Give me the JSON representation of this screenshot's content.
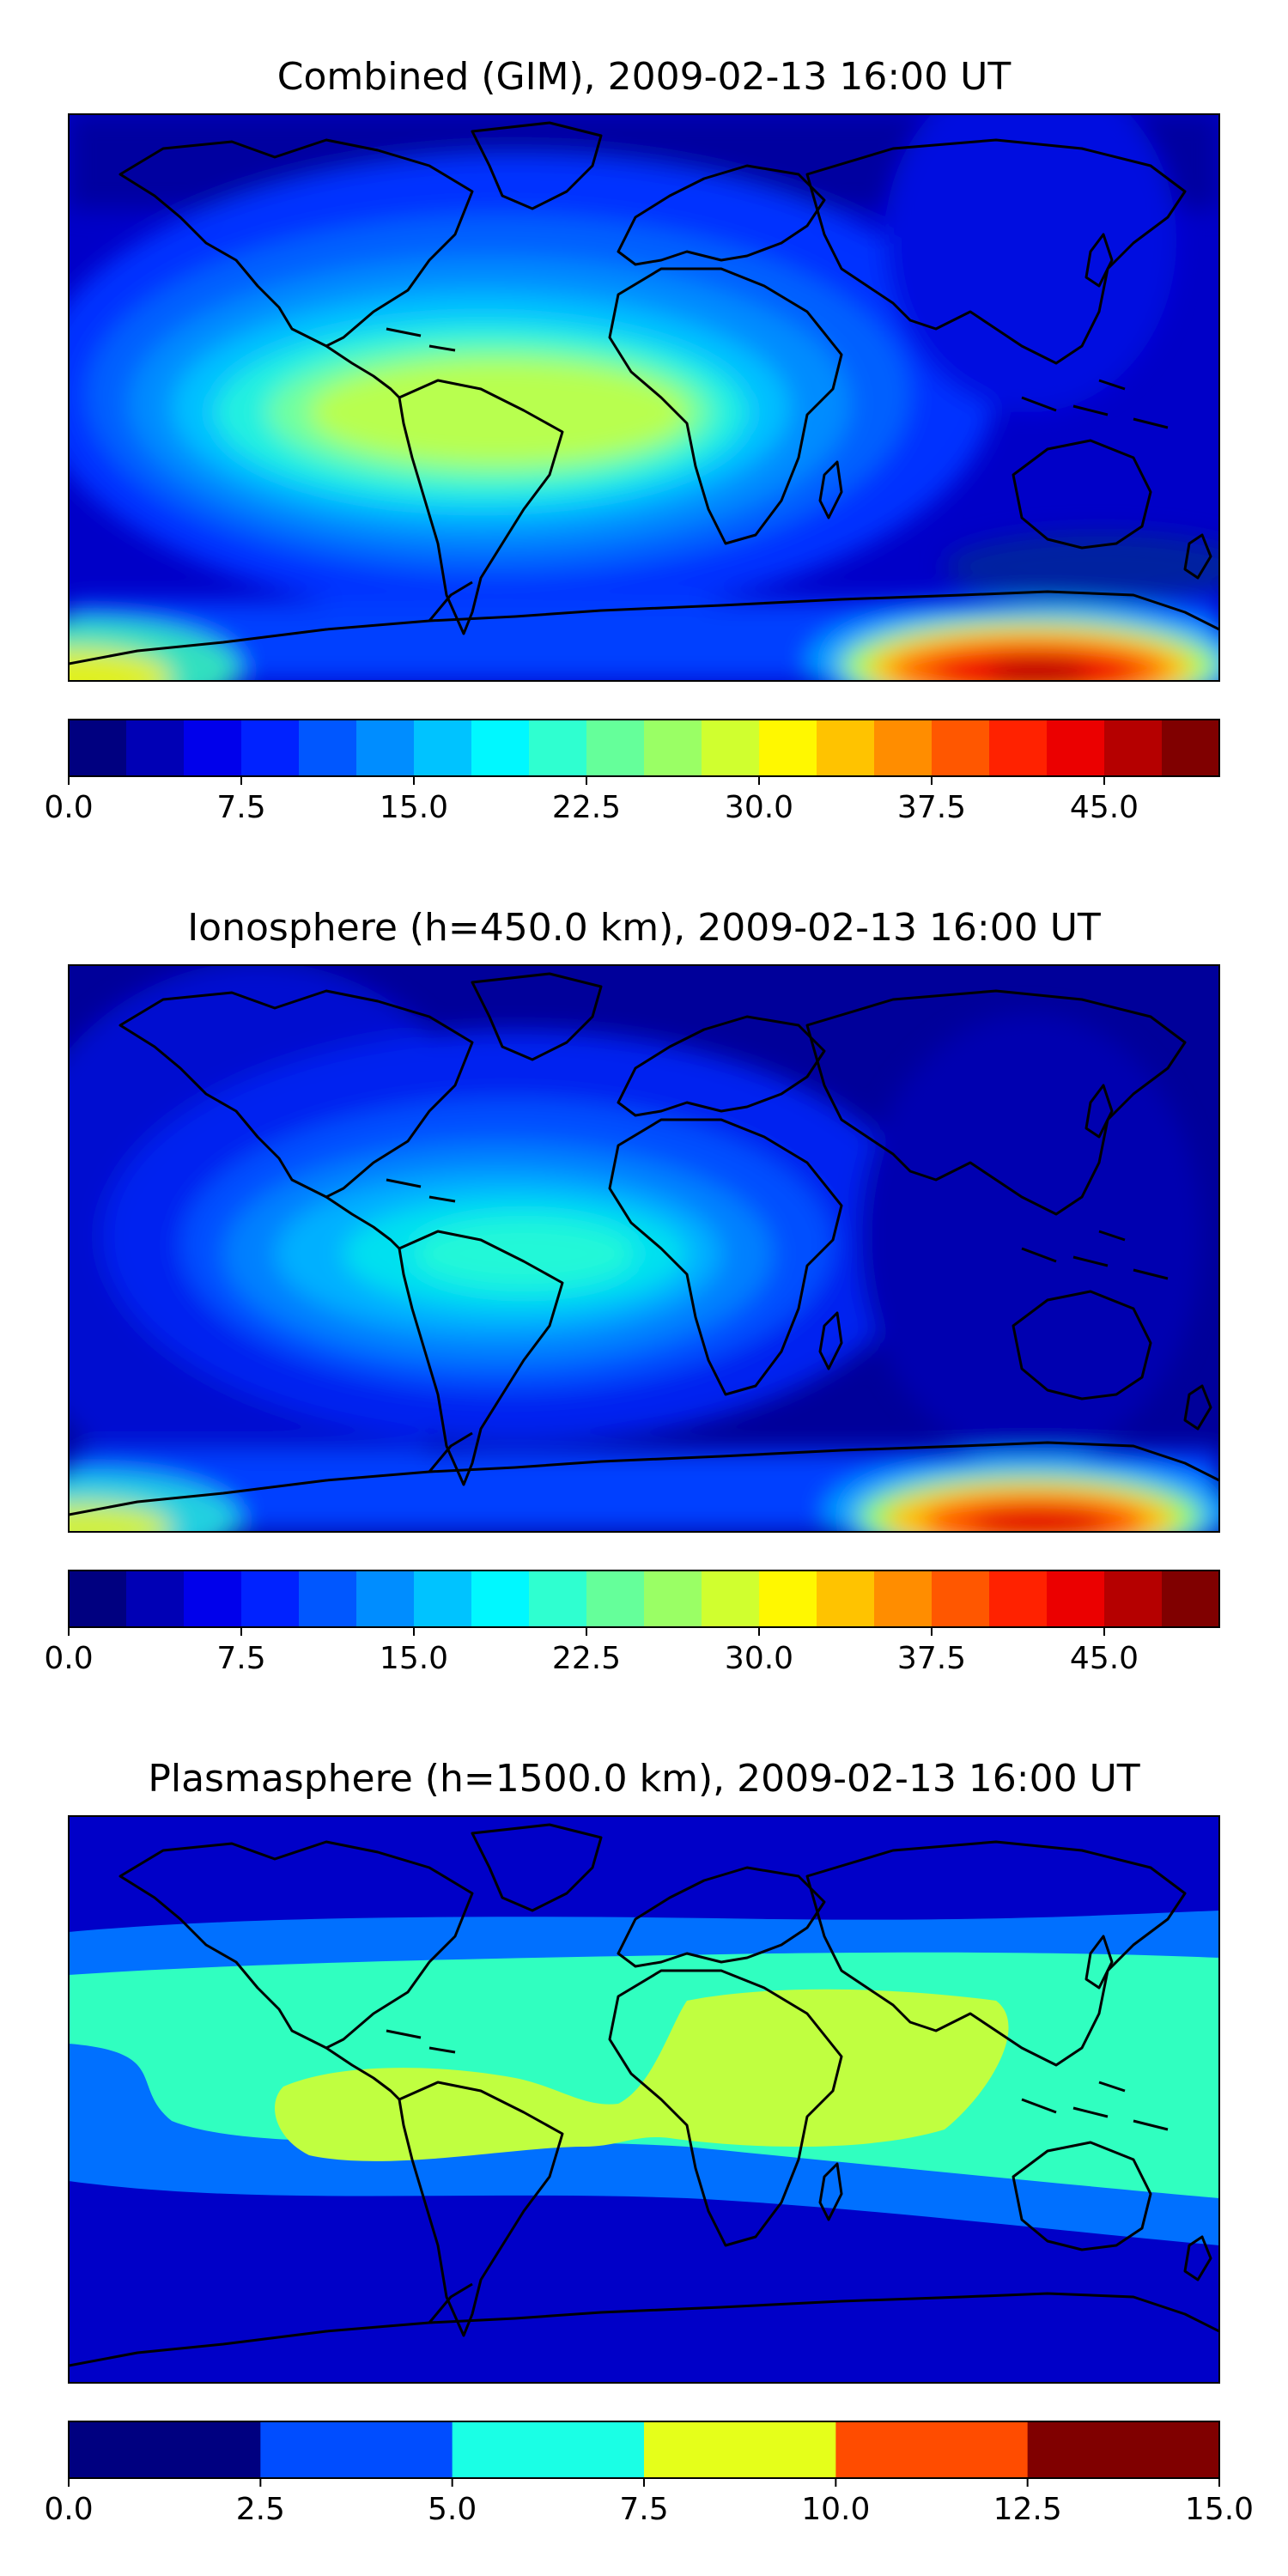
{
  "panels": [
    {
      "title": "Combined (GIM), 2009-02-13 16:00 UT",
      "colorbar": {
        "min": 0.0,
        "max": 50.0,
        "step": 2.5,
        "tick_labels": [
          "0.0",
          "7.5",
          "15.0",
          "22.5",
          "30.0",
          "37.5",
          "45.0"
        ],
        "tick_values": [
          0.0,
          7.5,
          15.0,
          22.5,
          30.0,
          37.5,
          45.0
        ]
      }
    },
    {
      "title": "Ionosphere  (h=450.0 km), 2009-02-13 16:00 UT",
      "colorbar": {
        "min": 0.0,
        "max": 50.0,
        "step": 2.5,
        "tick_labels": [
          "0.0",
          "7.5",
          "15.0",
          "22.5",
          "30.0",
          "37.5",
          "45.0"
        ],
        "tick_values": [
          0.0,
          7.5,
          15.0,
          22.5,
          30.0,
          37.5,
          45.0
        ]
      }
    },
    {
      "title": "Plasmasphere (h=1500.0 km), 2009-02-13 16:00 UT",
      "colorbar": {
        "min": 0.0,
        "max": 15.0,
        "step": 2.5,
        "tick_labels": [
          "0.0",
          "2.5",
          "5.0",
          "7.5",
          "10.0",
          "12.5",
          "15.0"
        ],
        "tick_values": [
          0.0,
          2.5,
          5.0,
          7.5,
          10.0,
          12.5,
          15.0
        ]
      }
    }
  ],
  "colormap": "jet"
}
